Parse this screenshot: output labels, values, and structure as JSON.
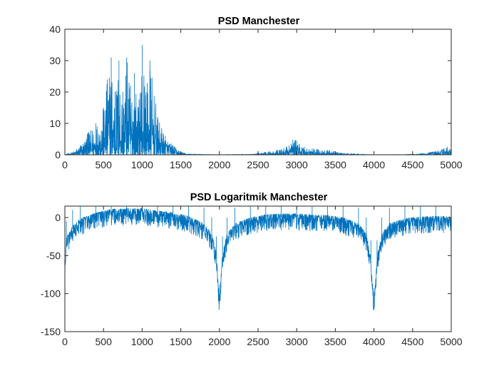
{
  "figure": {
    "background": "#ffffff"
  },
  "chart_data": [
    {
      "type": "line",
      "title": "PSD Manchester",
      "xlabel": "",
      "ylabel": "",
      "xlim": [
        0,
        5000
      ],
      "ylim": [
        0,
        40
      ],
      "xticks": [
        0,
        500,
        1000,
        1500,
        2000,
        2500,
        3000,
        3500,
        4000,
        4500,
        5000
      ],
      "yticks": [
        0,
        10,
        20,
        30,
        40
      ],
      "xtick_labels": [
        "0",
        "500",
        "1000",
        "1500",
        "2000",
        "2500",
        "3000",
        "3500",
        "4000",
        "4500",
        "5000"
      ],
      "ytick_labels": [
        "0",
        "10",
        "20",
        "30",
        "40"
      ],
      "grid": false,
      "legend": "none",
      "color": "#0072BD",
      "series": [
        {
          "x": [
            0,
            100,
            200,
            300,
            400,
            500,
            550,
            600,
            650,
            700,
            750,
            800,
            850,
            900,
            950,
            1000,
            1050,
            1100,
            1200,
            1300,
            1400,
            1500,
            1600,
            2000,
            2400,
            2600,
            2800,
            2900,
            2950,
            3000,
            3100,
            3200,
            3400,
            3600,
            4000,
            4400,
            4600,
            4800,
            4950,
            5000
          ],
          "y": [
            0.1,
            0.8,
            3,
            7,
            10,
            15,
            24,
            31,
            20,
            30,
            20,
            31,
            22,
            26,
            15,
            35,
            20,
            30,
            12,
            6,
            3,
            1,
            0.3,
            0.05,
            0.2,
            0.9,
            1.8,
            3,
            4.8,
            4.5,
            2.5,
            2,
            1.5,
            0.5,
            0.05,
            0.1,
            0.4,
            1.2,
            2.5,
            3
          ]
        }
      ]
    },
    {
      "type": "line",
      "title": "PSD Logaritmik Manchester",
      "xlabel": "",
      "ylabel": "",
      "xlim": [
        0,
        5000
      ],
      "ylim": [
        -150,
        15
      ],
      "xticks": [
        0,
        500,
        1000,
        1500,
        2000,
        2500,
        3000,
        3500,
        4000,
        4500,
        5000
      ],
      "yticks": [
        -150,
        -100,
        -50,
        0
      ],
      "xtick_labels": [
        "0",
        "500",
        "1000",
        "1500",
        "2000",
        "2500",
        "3000",
        "3500",
        "4000",
        "4500",
        "5000"
      ],
      "ytick_labels": [
        "-150",
        "-100",
        "-50",
        "0"
      ],
      "grid": false,
      "legend": "none",
      "color": "#0072BD",
      "series": [
        {
          "x": [
            0,
            20,
            100,
            200,
            400,
            600,
            800,
            1000,
            1200,
            1400,
            1600,
            1800,
            1900,
            1960,
            2000,
            2040,
            2100,
            2200,
            2400,
            2600,
            2800,
            3000,
            3200,
            3400,
            3600,
            3800,
            3900,
            3960,
            4000,
            4040,
            4100,
            4200,
            4400,
            4600,
            4800,
            5000
          ],
          "y": [
            -65,
            -30,
            -15,
            -5,
            2,
            7,
            8,
            8,
            5,
            3,
            -2,
            -12,
            -25,
            -50,
            -113,
            -50,
            -25,
            -12,
            -4,
            0,
            1,
            1,
            0,
            -1,
            -4,
            -12,
            -25,
            -55,
            -118,
            -55,
            -25,
            -12,
            -5,
            -3,
            -2,
            -3
          ]
        }
      ]
    }
  ]
}
